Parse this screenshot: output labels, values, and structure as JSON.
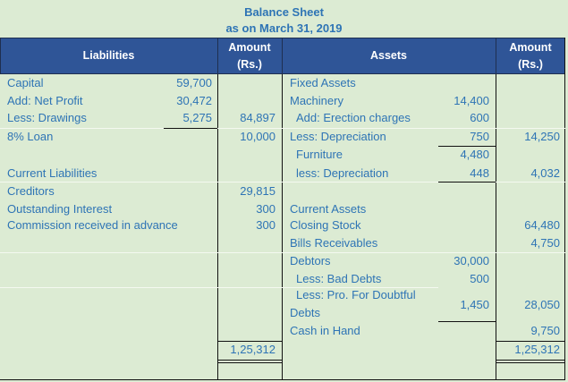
{
  "title": "Balance Sheet",
  "subtitle": "as on March 31, 2019",
  "header": {
    "liabilities": "Liabilities",
    "amount_left": "Amount (Rs.)",
    "assets": "Assets",
    "amount_right": "Amount (Rs.)"
  },
  "liabilities": [
    {
      "label": "Capital",
      "sub": "59,700",
      "amount": ""
    },
    {
      "label": "Add: Net Profit",
      "sub": "30,472",
      "amount": ""
    },
    {
      "label": "Less: Drawings",
      "sub": "5,275",
      "amount": "84,897"
    },
    {
      "label": "8% Loan",
      "sub": "",
      "amount": "10,000"
    },
    {
      "label": "Current Liabilities",
      "sub": "",
      "amount": ""
    },
    {
      "label": "Creditors",
      "sub": "",
      "amount": "29,815"
    },
    {
      "label": "Outstanding Interest",
      "sub": "",
      "amount": "300"
    },
    {
      "label": "Commission received in advance",
      "sub": "",
      "amount": "300"
    }
  ],
  "assets": [
    {
      "label": "Fixed Assets",
      "sub": "",
      "amount": ""
    },
    {
      "label": "Machinery",
      "sub": "14,400",
      "amount": ""
    },
    {
      "label": " Add: Erection charges",
      "sub": "600",
      "amount": ""
    },
    {
      "label": "Less: Depreciation",
      "sub": "750",
      "amount": "14,250"
    },
    {
      "label": " Furniture",
      "sub": "4,480",
      "amount": ""
    },
    {
      "label": " less: Depreciation",
      "sub": "448",
      "amount": "4,032"
    },
    {
      "label": "Current Assets",
      "sub": "",
      "amount": ""
    },
    {
      "label": "Closing Stock",
      "sub": "",
      "amount": "64,480"
    },
    {
      "label": "Bills Receivables",
      "sub": "",
      "amount": "4,750"
    },
    {
      "label": "Debtors",
      "sub": "30,000",
      "amount": ""
    },
    {
      "label": " Less: Bad Debts",
      "sub": "500",
      "amount": ""
    },
    {
      "label": " Less: Pro. For Doubtful",
      "label2": "Debts",
      "sub": "1,450",
      "amount": "28,050"
    },
    {
      "label": "Cash in Hand",
      "sub": "",
      "amount": "9,750"
    }
  ],
  "totals": {
    "liabilities": "1,25,312",
    "assets": "1,25,312"
  }
}
